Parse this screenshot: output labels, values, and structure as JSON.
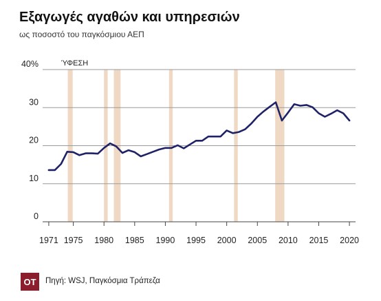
{
  "header": {
    "title": "Εξαγωγές αγαθών και υπηρεσιών",
    "subtitle": "ως ποσοστό του παγκόσμιου ΑΕΠ"
  },
  "footer": {
    "logo_text": "OT",
    "source": "Πηγή: WSJ, Παγκόσμια Τράπεζα"
  },
  "colors": {
    "line": "#1f2266",
    "recession": "#efd9c4",
    "grid": "#9a9a9a",
    "logo": "#8b1d2c"
  },
  "chart_data": {
    "type": "line",
    "title": "Εξαγωγές αγαθών και υπηρεσιών",
    "subtitle": "ως ποσοστό του παγκόσμιου ΑΕΠ",
    "xlim": [
      1970,
      2021
    ],
    "ylim": [
      0,
      40
    ],
    "x_ticks": [
      1971,
      1975,
      1980,
      1985,
      1990,
      1995,
      2000,
      2005,
      2010,
      2015,
      2020
    ],
    "y_ticks": [
      {
        "value": 0,
        "label": "0"
      },
      {
        "value": 10,
        "label": "10"
      },
      {
        "value": 20,
        "label": "20"
      },
      {
        "value": 30,
        "label": "30"
      },
      {
        "value": 40,
        "label": "40%"
      }
    ],
    "grid": "horizontal",
    "recession_label": "ΎΦΕΣΗ",
    "recessions": [
      {
        "start": 1974.1,
        "end": 1974.9
      },
      {
        "start": 1980.0,
        "end": 1980.6
      },
      {
        "start": 1981.6,
        "end": 1982.7
      },
      {
        "start": 1990.6,
        "end": 1991.2
      },
      {
        "start": 2001.2,
        "end": 2001.8
      },
      {
        "start": 2007.9,
        "end": 2009.4
      }
    ],
    "series": [
      {
        "name": "",
        "x": [
          1971,
          1972,
          1973,
          1974,
          1975,
          1976,
          1977,
          1978,
          1979,
          1980,
          1981,
          1982,
          1983,
          1984,
          1985,
          1986,
          1987,
          1988,
          1989,
          1990,
          1991,
          1992,
          1993,
          1994,
          1995,
          1996,
          1997,
          1998,
          1999,
          2000,
          2001,
          2002,
          2003,
          2004,
          2005,
          2006,
          2007,
          2008,
          2009,
          2010,
          2011,
          2012,
          2013,
          2014,
          2015,
          2016,
          2017,
          2018,
          2019,
          2020
        ],
        "y": [
          13.6,
          13.6,
          15.2,
          18.4,
          18.3,
          17.5,
          18.0,
          18.0,
          17.9,
          19.4,
          20.6,
          19.8,
          18.1,
          18.8,
          18.3,
          17.2,
          17.8,
          18.4,
          19.0,
          19.4,
          19.4,
          20.1,
          19.3,
          20.3,
          21.3,
          21.3,
          22.4,
          22.4,
          22.4,
          24.0,
          23.3,
          23.6,
          24.3,
          25.8,
          27.6,
          29.0,
          30.2,
          31.4,
          26.6,
          28.7,
          30.9,
          30.5,
          30.7,
          30.1,
          28.5,
          27.6,
          28.4,
          29.3,
          28.5,
          26.6
        ]
      }
    ]
  }
}
